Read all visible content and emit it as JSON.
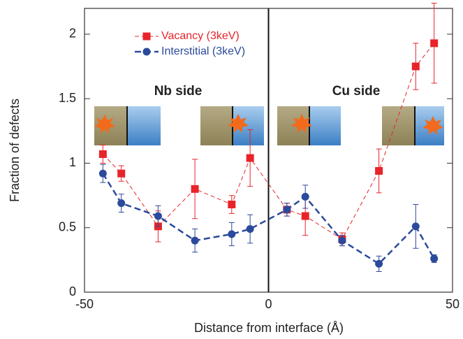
{
  "chart_data": {
    "type": "line",
    "xlabel": "Distance from interface (Å)",
    "ylabel": "Fraction of defects",
    "annotations": [
      "Nb side",
      "Cu side"
    ],
    "x": [
      -45,
      -40,
      -30,
      -20,
      -10,
      -5,
      5,
      10,
      20,
      30,
      40,
      45
    ],
    "series": [
      {
        "name": "Vacancy (3keV)",
        "color": "#e8242a",
        "marker": "square",
        "dash": "6,4",
        "width": 1,
        "values": [
          1.07,
          0.92,
          0.51,
          0.8,
          0.68,
          1.04,
          0.64,
          0.59,
          0.41,
          0.94,
          1.75,
          1.93
        ],
        "errors": [
          0.07,
          0.06,
          0.12,
          0.23,
          0.07,
          0.22,
          0.05,
          0.15,
          0.05,
          0.17,
          0.18,
          0.31
        ]
      },
      {
        "name": "Interstitial (3keV)",
        "color": "#2b4a9b",
        "marker": "circle",
        "dash": "9,5",
        "width": 2.5,
        "values": [
          0.92,
          0.69,
          0.59,
          0.4,
          0.45,
          0.49,
          0.64,
          0.74,
          0.4,
          0.22,
          0.51,
          0.26
        ],
        "errors": [
          0.07,
          0.07,
          0.08,
          0.09,
          0.09,
          0.11,
          0.05,
          0.09,
          0.04,
          0.06,
          0.17,
          0.03
        ]
      }
    ],
    "xlim": [
      -50,
      50
    ],
    "xticks": [
      -50,
      0,
      50
    ],
    "ylim": [
      0,
      2.2
    ],
    "yticks": [
      0,
      0.5,
      1,
      1.5,
      2
    ],
    "vline": 0,
    "legend": "upper-left"
  }
}
